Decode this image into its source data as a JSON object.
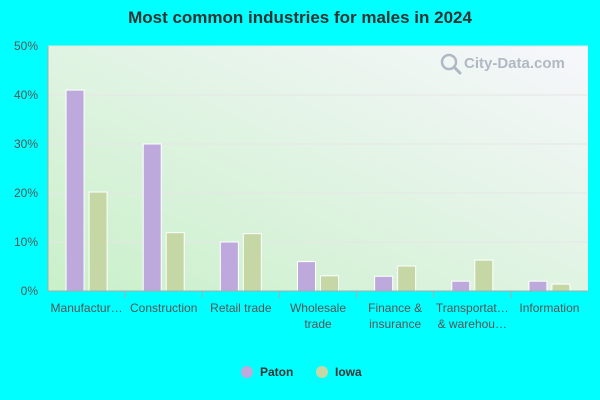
{
  "colors": {
    "background": "#00ffff",
    "plot_gradient_start": "#c9f0c9",
    "plot_gradient_end": "#f7f7fc",
    "paton": "#bea9dc",
    "iowa": "#c5d7a5",
    "axis": "#aaaaaa",
    "grid": "#e6e6e6"
  },
  "watermark": {
    "text": "City-Data.com",
    "icon": "search-icon"
  },
  "chart_data": {
    "type": "bar",
    "title": "Most common industries for males in 2024",
    "categories": [
      [
        "Manufactur…"
      ],
      [
        "Construction"
      ],
      [
        "Retail trade"
      ],
      [
        "Wholesale",
        "trade"
      ],
      [
        "Finance &",
        "insurance"
      ],
      [
        "Transportat…",
        "& warehou…"
      ],
      [
        "Information"
      ]
    ],
    "series": [
      {
        "name": "Paton",
        "values": [
          41.0,
          30.0,
          10.0,
          6.0,
          3.0,
          2.0,
          2.0
        ]
      },
      {
        "name": "Iowa",
        "values": [
          20.2,
          11.9,
          11.7,
          3.1,
          5.1,
          6.3,
          1.4
        ]
      }
    ],
    "ylim": [
      0,
      50
    ],
    "yticks": [
      "0%",
      "10%",
      "20%",
      "30%",
      "40%",
      "50%"
    ],
    "xlabel": "",
    "ylabel": "",
    "grid": true,
    "legend": "bottom-center"
  }
}
